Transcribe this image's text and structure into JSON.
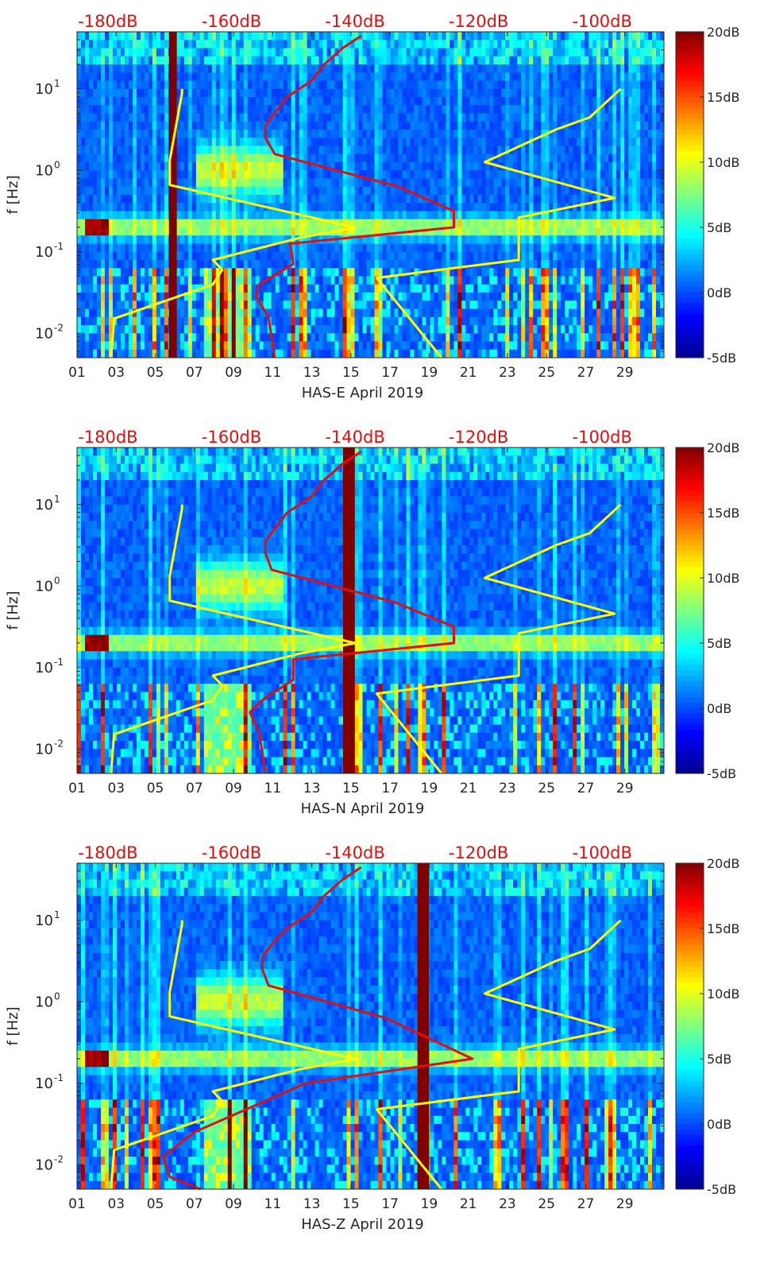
{
  "figure": {
    "panel_count": 3
  },
  "colormap": [
    "#00008f",
    "#0000ff",
    "#0080ff",
    "#00ffff",
    "#80ff80",
    "#ffff00",
    "#ff8000",
    "#ff0000",
    "#800000"
  ],
  "chart_data": [
    {
      "type": "heatmap",
      "title": "",
      "xlabel": "HAS-E April 2019",
      "ylabel": "f [Hz]",
      "xlim": [
        1,
        31
      ],
      "x_ticks": [
        "01",
        "03",
        "05",
        "07",
        "09",
        "11",
        "13",
        "15",
        "17",
        "19",
        "21",
        "23",
        "25",
        "27",
        "29"
      ],
      "ylim_log10": [
        -2.3,
        1.7
      ],
      "y_ticks": [
        "10^-2",
        "10^-1",
        "10^0",
        "10^1"
      ],
      "top_axis_ticks": [
        "-180dB",
        "-160dB",
        "-140dB",
        "-120dB",
        "-100dB"
      ],
      "colorbar": {
        "range": [
          -5,
          20
        ],
        "ticks": [
          "20dB",
          "15dB",
          "10dB",
          "5dB",
          "0dB",
          "-5dB"
        ]
      },
      "gap_band": {
        "start_day": 5.7,
        "end_day": 6.1,
        "color": "#800000"
      },
      "low_noise_model": {
        "color": "#ffff00",
        "log10_f": [
          -2.3,
          -1.82,
          -1.4,
          -1.22,
          -1.1,
          -0.83,
          -0.7,
          -0.18,
          0.12,
          0.95,
          1.0
        ],
        "db": [
          -179.5,
          -179.0,
          -163.0,
          -161.5,
          -163.0,
          -149.0,
          -140.0,
          -170.0,
          -170.0,
          -168.0,
          -168.0
        ]
      },
      "high_noise_model": {
        "color": "#ffff00",
        "log10_f": [
          -2.3,
          -1.32,
          -1.2,
          -1.1,
          -0.58,
          -0.34,
          0.1,
          0.5,
          0.65,
          1.0
        ],
        "db": [
          -126.0,
          -136.5,
          -124.0,
          -113.5,
          -113.5,
          -98.0,
          -119.0,
          -107.5,
          -102.0,
          -97.0
        ]
      },
      "station_median": {
        "color": "#e01010",
        "log10_f": [
          -2.3,
          -1.8,
          -1.55,
          -1.4,
          -1.15,
          -0.9,
          -0.7,
          -0.5,
          -0.2,
          0.2,
          0.4,
          0.55,
          0.7,
          0.9,
          1.1,
          1.3,
          1.5,
          1.65
        ],
        "db": [
          -153.0,
          -154.0,
          -156.0,
          -155.5,
          -150.0,
          -150.5,
          -124.0,
          -124.0,
          -133.0,
          -153.0,
          -154.5,
          -154.5,
          -153.0,
          -151.0,
          -147.0,
          -145.0,
          -142.0,
          -139.0
        ]
      }
    },
    {
      "type": "heatmap",
      "title": "",
      "xlabel": "HAS-N April 2019",
      "ylabel": "f [Hz]",
      "xlim": [
        1,
        31
      ],
      "x_ticks": [
        "01",
        "03",
        "05",
        "07",
        "09",
        "11",
        "13",
        "15",
        "17",
        "19",
        "21",
        "23",
        "25",
        "27",
        "29"
      ],
      "ylim_log10": [
        -2.3,
        1.7
      ],
      "y_ticks": [
        "10^-2",
        "10^-1",
        "10^0",
        "10^1"
      ],
      "top_axis_ticks": [
        "-180dB",
        "-160dB",
        "-140dB",
        "-120dB",
        "-100dB"
      ],
      "colorbar": {
        "range": [
          -5,
          20
        ],
        "ticks": [
          "20dB",
          "15dB",
          "10dB",
          "5dB",
          "0dB",
          "-5dB"
        ]
      },
      "gap_band": {
        "start_day": 14.6,
        "end_day": 15.2,
        "color": "#800000"
      },
      "low_noise_model": {
        "color": "#ffff00",
        "log10_f": [
          -2.3,
          -1.82,
          -1.4,
          -1.22,
          -1.1,
          -0.83,
          -0.7,
          -0.18,
          0.12,
          0.95,
          1.0
        ],
        "db": [
          -179.5,
          -179.0,
          -163.0,
          -161.5,
          -163.0,
          -149.0,
          -140.0,
          -170.0,
          -170.0,
          -168.0,
          -168.0
        ]
      },
      "high_noise_model": {
        "color": "#ffff00",
        "log10_f": [
          -2.3,
          -1.32,
          -1.2,
          -1.1,
          -0.58,
          -0.34,
          0.1,
          0.5,
          0.65,
          1.0
        ],
        "db": [
          -126.0,
          -136.5,
          -124.0,
          -113.5,
          -113.5,
          -98.0,
          -119.0,
          -107.5,
          -102.0,
          -97.0
        ]
      },
      "station_median": {
        "color": "#e01010",
        "log10_f": [
          -2.3,
          -1.8,
          -1.55,
          -1.4,
          -1.15,
          -0.9,
          -0.7,
          -0.5,
          -0.2,
          0.2,
          0.4,
          0.55,
          0.7,
          0.9,
          1.1,
          1.3,
          1.5,
          1.65
        ],
        "db": [
          -154.5,
          -155.5,
          -157.0,
          -155.0,
          -150.0,
          -150.0,
          -124.0,
          -124.0,
          -133.5,
          -153.5,
          -154.5,
          -154.5,
          -153.0,
          -151.0,
          -147.0,
          -145.0,
          -142.0,
          -139.0
        ]
      }
    },
    {
      "type": "heatmap",
      "title": "",
      "xlabel": "HAS-Z April 2019",
      "ylabel": "f [Hz]",
      "xlim": [
        1,
        31
      ],
      "x_ticks": [
        "01",
        "03",
        "05",
        "07",
        "09",
        "11",
        "13",
        "15",
        "17",
        "19",
        "21",
        "23",
        "25",
        "27",
        "29"
      ],
      "ylim_log10": [
        -2.3,
        1.7
      ],
      "y_ticks": [
        "10^-2",
        "10^-1",
        "10^0",
        "10^1"
      ],
      "top_axis_ticks": [
        "-180dB",
        "-160dB",
        "-140dB",
        "-120dB",
        "-100dB"
      ],
      "colorbar": {
        "range": [
          -5,
          20
        ],
        "ticks": [
          "20dB",
          "15dB",
          "10dB",
          "5dB",
          "0dB",
          "-5dB"
        ]
      },
      "gap_band": {
        "start_day": 18.4,
        "end_day": 19.0,
        "color": "#800000"
      },
      "low_noise_model": {
        "color": "#ffff00",
        "log10_f": [
          -2.3,
          -1.82,
          -1.4,
          -1.22,
          -1.1,
          -0.83,
          -0.7,
          -0.18,
          0.12,
          0.95,
          1.0
        ],
        "db": [
          -179.5,
          -179.0,
          -163.0,
          -161.5,
          -163.0,
          -149.0,
          -140.0,
          -170.0,
          -170.0,
          -168.0,
          -168.0
        ]
      },
      "high_noise_model": {
        "color": "#ffff00",
        "log10_f": [
          -2.3,
          -1.32,
          -1.2,
          -1.1,
          -0.58,
          -0.34,
          0.1,
          0.5,
          0.65,
          1.0
        ],
        "db": [
          -126.0,
          -136.5,
          -124.0,
          -113.5,
          -113.5,
          -98.0,
          -119.0,
          -107.5,
          -102.0,
          -97.0
        ]
      },
      "station_median": {
        "color": "#e01010",
        "log10_f": [
          -2.3,
          -2.15,
          -1.9,
          -1.6,
          -1.4,
          -1.0,
          -0.7,
          -0.2,
          0.2,
          0.4,
          0.55,
          0.7,
          0.9,
          1.1,
          1.3,
          1.5,
          1.65
        ],
        "db": [
          -165.0,
          -170.0,
          -171.0,
          -166.0,
          -160.0,
          -148.0,
          -121.0,
          -135.0,
          -154.0,
          -155.0,
          -155.0,
          -153.5,
          -151.0,
          -147.0,
          -145.0,
          -142.0,
          -139.0
        ]
      }
    }
  ]
}
